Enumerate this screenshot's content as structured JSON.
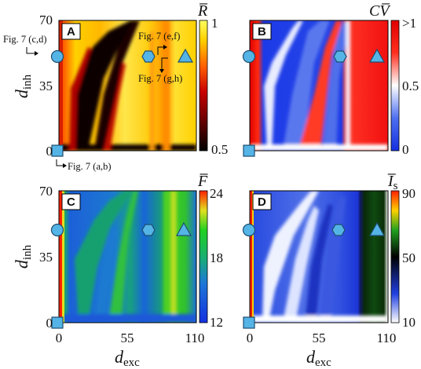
{
  "figure": {
    "xlabel_main": "d",
    "xlabel_sub": "exc",
    "ylabel_main": "d",
    "ylabel_sub": "inh",
    "x_ticks": [
      "0",
      "55",
      "110"
    ],
    "y_ticks": [
      "0",
      "35",
      "70"
    ]
  },
  "panels": [
    {
      "id": "A",
      "colorbar_title": "R̅",
      "colorbar_ticks": [
        "1",
        "0.5"
      ],
      "palette": [
        "#000000",
        "#5a0000",
        "#c80000",
        "#ff6000",
        "#ffd000",
        "#ffff60"
      ],
      "annotations": {
        "ann_cd": "Fig. 7 (c,d)",
        "ann_ef": "Fig. 7 (e,f)",
        "ann_gh": "Fig. 7 (g,h)",
        "ann_ab": "Fig. 7 (a,b)"
      }
    },
    {
      "id": "B",
      "colorbar_title": "CV̅",
      "colorbar_ticks": [
        ">1",
        "0.5",
        "0"
      ],
      "palette": [
        "#1530e0",
        "#4f6ff0",
        "#ffffff",
        "#ff3020",
        "#e00000"
      ]
    },
    {
      "id": "C",
      "colorbar_title": "F̅",
      "colorbar_ticks": [
        "24",
        "18",
        "12"
      ],
      "palette": [
        "#1530e0",
        "#1c78d8",
        "#19b070",
        "#20d020",
        "#e0e020",
        "#ff2000"
      ]
    },
    {
      "id": "D",
      "colorbar_title": "I̅",
      "colorbar_title_sub": "s",
      "colorbar_ticks": [
        "90",
        "50",
        "10"
      ],
      "palette": [
        "#ffffff",
        "#2040e0",
        "#000000",
        "#20a020",
        "#ffd000",
        "#ff2000"
      ]
    }
  ],
  "chart_data": [
    {
      "type": "heatmap",
      "panel": "A",
      "title": "",
      "xlabel": "d_exc",
      "ylabel": "d_inh",
      "xlim": [
        0,
        110
      ],
      "ylim": [
        0,
        70
      ],
      "color_range": [
        0.5,
        1
      ],
      "colorbar_label": "R̅",
      "markers": [
        {
          "shape": "circle",
          "x": 0,
          "y": 50
        },
        {
          "shape": "square",
          "x": 0,
          "y": 0
        },
        {
          "shape": "hexagon",
          "x": 75,
          "y": 50
        },
        {
          "shape": "triangle",
          "x": 100,
          "y": 50
        }
      ]
    },
    {
      "type": "heatmap",
      "panel": "B",
      "title": "",
      "xlabel": "d_exc",
      "ylabel": "d_inh",
      "xlim": [
        0,
        110
      ],
      "ylim": [
        0,
        70
      ],
      "color_range": [
        0,
        1
      ],
      "colorbar_label": "CV̅",
      "markers": [
        {
          "shape": "circle",
          "x": 0,
          "y": 50
        },
        {
          "shape": "square",
          "x": 0,
          "y": 0
        },
        {
          "shape": "hexagon",
          "x": 75,
          "y": 50
        },
        {
          "shape": "triangle",
          "x": 100,
          "y": 50
        }
      ]
    },
    {
      "type": "heatmap",
      "panel": "C",
      "title": "",
      "xlabel": "d_exc",
      "ylabel": "d_inh",
      "xlim": [
        0,
        110
      ],
      "ylim": [
        0,
        70
      ],
      "color_range": [
        12,
        24
      ],
      "colorbar_label": "F̅",
      "markers": [
        {
          "shape": "circle",
          "x": 0,
          "y": 50
        },
        {
          "shape": "square",
          "x": 0,
          "y": 0
        },
        {
          "shape": "hexagon",
          "x": 75,
          "y": 50
        },
        {
          "shape": "triangle",
          "x": 100,
          "y": 50
        }
      ]
    },
    {
      "type": "heatmap",
      "panel": "D",
      "title": "",
      "xlabel": "d_exc",
      "ylabel": "d_inh",
      "xlim": [
        0,
        110
      ],
      "ylim": [
        0,
        70
      ],
      "color_range": [
        10,
        90
      ],
      "colorbar_label": "I̅_s",
      "markers": [
        {
          "shape": "circle",
          "x": 0,
          "y": 50
        },
        {
          "shape": "square",
          "x": 0,
          "y": 0
        },
        {
          "shape": "hexagon",
          "x": 75,
          "y": 50
        },
        {
          "shape": "triangle",
          "x": 100,
          "y": 50
        }
      ]
    }
  ]
}
